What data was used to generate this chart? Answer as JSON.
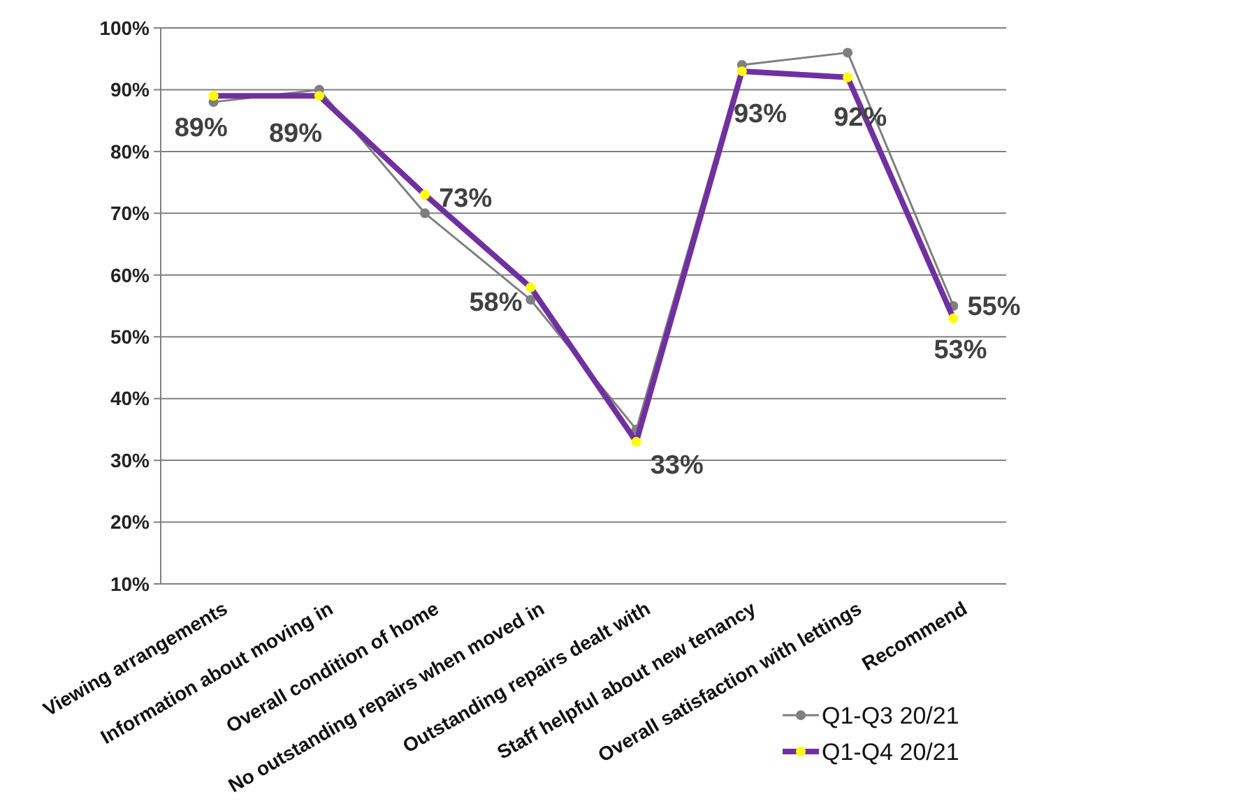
{
  "chart_data": {
    "type": "line",
    "categories": [
      "Viewing arrangements",
      "Information about moving in",
      "Overall condition of home",
      "No outstanding repairs when moved in",
      "Outstanding repairs dealt with",
      "Staff helpful about new tenancy",
      "Overall satisfaction with lettings",
      "Recommend"
    ],
    "series": [
      {
        "name": "Q1-Q3 20/21",
        "color": "#7f7f7f",
        "values": [
          88,
          90,
          70,
          56,
          35,
          94,
          96,
          55
        ],
        "value_labels": [
          null,
          null,
          null,
          null,
          null,
          null,
          null,
          "55%"
        ]
      },
      {
        "name": "Q1-Q4 20/21",
        "color": "#7030a0",
        "values": [
          89,
          89,
          73,
          58,
          33,
          93,
          92,
          53
        ],
        "value_labels": [
          "89%",
          "89%",
          "73%",
          "58%",
          "33%",
          "93%",
          "92%",
          "53%"
        ]
      }
    ],
    "ylim": [
      10,
      100
    ],
    "yticks": [
      {
        "value": 10,
        "label": "10%"
      },
      {
        "value": 20,
        "label": "20%"
      },
      {
        "value": 30,
        "label": "30%"
      },
      {
        "value": 40,
        "label": "40%"
      },
      {
        "value": 50,
        "label": "50%"
      },
      {
        "value": 60,
        "label": "60%"
      },
      {
        "value": 70,
        "label": "70%"
      },
      {
        "value": 80,
        "label": "80%"
      },
      {
        "value": 90,
        "label": "90%"
      },
      {
        "value": 100,
        "label": "100%"
      }
    ],
    "grid": "y",
    "legend": "bottom right",
    "marker": "circle"
  }
}
